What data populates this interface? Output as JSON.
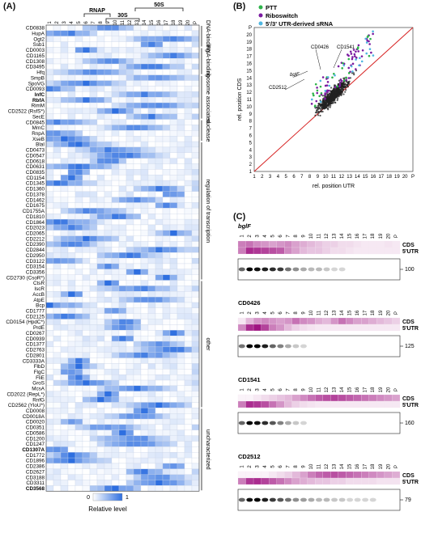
{
  "panelA": {
    "label": "(A)",
    "columns": [
      "1",
      "2",
      "3",
      "4",
      "5",
      "6",
      "7",
      "8",
      "9",
      "10",
      "11",
      "12",
      "13",
      "14",
      "15",
      "16",
      "17",
      "18",
      "19",
      "20",
      "P"
    ],
    "brackets": [
      {
        "label": "RNAP",
        "from": 6,
        "to": 9
      },
      {
        "label": "30S",
        "from": 9,
        "to": 13
      },
      {
        "label": "50S",
        "from": 13,
        "to": 19
      }
    ],
    "rows": [
      {
        "name": "CD0838",
        "bold": false
      },
      {
        "name": "HupA",
        "bold": false
      },
      {
        "name": "Ogt2",
        "bold": false
      },
      {
        "name": "Ssb1",
        "bold": false
      },
      {
        "name": "CD0003",
        "bold": false
      },
      {
        "name": "CD1165",
        "bold": false
      },
      {
        "name": "CD1308",
        "bold": false
      },
      {
        "name": "CD3495",
        "bold": false
      },
      {
        "name": "Hfq",
        "bold": false
      },
      {
        "name": "SmpB",
        "bold": false
      },
      {
        "name": "SpoVG",
        "bold": false
      },
      {
        "name": "CD0093",
        "bold": false
      },
      {
        "name": "InfC",
        "bold": true
      },
      {
        "name": "RbfA",
        "bold": true
      },
      {
        "name": "RimM",
        "bold": false
      },
      {
        "name": "CD2522 (RsfS*)",
        "bold": false
      },
      {
        "name": "SecE",
        "bold": false
      },
      {
        "name": "CD0845",
        "bold": false
      },
      {
        "name": "MrnC",
        "bold": false
      },
      {
        "name": "RnpA",
        "bold": false
      },
      {
        "name": "XseB",
        "bold": false
      },
      {
        "name": "BlaI",
        "bold": false
      },
      {
        "name": "CD0473",
        "bold": false
      },
      {
        "name": "CD0547",
        "bold": false
      },
      {
        "name": "CD0618",
        "bold": false
      },
      {
        "name": "CD0631",
        "bold": false
      },
      {
        "name": "CD0835",
        "bold": false
      },
      {
        "name": "CD1154",
        "bold": false
      },
      {
        "name": "CD1345",
        "bold": false
      },
      {
        "name": "CD1360",
        "bold": false
      },
      {
        "name": "CD1378",
        "bold": false
      },
      {
        "name": "CD1462",
        "bold": false
      },
      {
        "name": "CD1675",
        "bold": false
      },
      {
        "name": "CD1755A",
        "bold": false
      },
      {
        "name": "CD1810",
        "bold": false
      },
      {
        "name": "CD1864",
        "bold": false
      },
      {
        "name": "CD2023",
        "bold": false
      },
      {
        "name": "CD2065",
        "bold": false
      },
      {
        "name": "CD2212",
        "bold": false
      },
      {
        "name": "CD2390",
        "bold": false
      },
      {
        "name": "CD2844",
        "bold": false
      },
      {
        "name": "CD2950",
        "bold": false
      },
      {
        "name": "CD3122",
        "bold": false
      },
      {
        "name": "CD3154",
        "bold": false
      },
      {
        "name": "CD3356",
        "bold": false
      },
      {
        "name": "CD2730 (CsoR*)",
        "bold": false
      },
      {
        "name": "CtsR",
        "bold": false
      },
      {
        "name": "IscR",
        "bold": false
      },
      {
        "name": "AccB",
        "bold": false
      },
      {
        "name": "AtpE",
        "bold": false
      },
      {
        "name": "Bcp",
        "bold": false
      },
      {
        "name": "CD1777",
        "bold": false
      },
      {
        "name": "CD2125",
        "bold": false
      },
      {
        "name": "CD0154 (HpdC*)",
        "bold": false
      },
      {
        "name": "PrdE",
        "bold": false
      },
      {
        "name": "CD0267",
        "bold": false
      },
      {
        "name": "CD0939",
        "bold": false
      },
      {
        "name": "CD1377",
        "bold": false
      },
      {
        "name": "CD2763",
        "bold": false
      },
      {
        "name": "CD2801",
        "bold": false
      },
      {
        "name": "CD3333A",
        "bold": false
      },
      {
        "name": "FlbD",
        "bold": false
      },
      {
        "name": "FlgC",
        "bold": false
      },
      {
        "name": "FliE",
        "bold": false
      },
      {
        "name": "GroS",
        "bold": false
      },
      {
        "name": "McsA",
        "bold": false
      },
      {
        "name": "CD2022 (RepL*)",
        "bold": false
      },
      {
        "name": "RnfG",
        "bold": false
      },
      {
        "name": "CD2562 (YloU*)",
        "bold": false
      },
      {
        "name": "CD0008",
        "bold": false
      },
      {
        "name": "CD0018A",
        "bold": false
      },
      {
        "name": "CD0020",
        "bold": false
      },
      {
        "name": "CD0351",
        "bold": false
      },
      {
        "name": "CD0586",
        "bold": false
      },
      {
        "name": "CD1200",
        "bold": false
      },
      {
        "name": "CD1247",
        "bold": false
      },
      {
        "name": "CD1307A",
        "bold": true
      },
      {
        "name": "CD1772",
        "bold": false
      },
      {
        "name": "CD1896",
        "bold": false
      },
      {
        "name": "CD2386",
        "bold": false
      },
      {
        "name": "CD2627",
        "bold": false
      },
      {
        "name": "CD3188",
        "bold": false
      },
      {
        "name": "CD3311",
        "bold": false
      },
      {
        "name": "CD3568",
        "bold": true
      }
    ],
    "categories": [
      {
        "label": "DNA-binding",
        "from": 0,
        "to": 4
      },
      {
        "label": "RNA-binding",
        "from": 4,
        "to": 9
      },
      {
        "label": "ribosome associated",
        "from": 9,
        "to": 17
      },
      {
        "label": "nuclease",
        "from": 17,
        "to": 21
      },
      {
        "label": "regulation of transcription",
        "from": 21,
        "to": 46
      },
      {
        "label": "other",
        "from": 46,
        "to": 69
      },
      {
        "label": "uncharacterized",
        "from": 69,
        "to": 84
      }
    ],
    "legend": {
      "min": "0",
      "max": "1",
      "title": "Relative level"
    },
    "colors": {
      "high": "#2e6fe0",
      "low": "#ffffff"
    }
  },
  "panelB": {
    "label": "(B)",
    "legend": [
      {
        "label": "PTT",
        "color": "#2db34a"
      },
      {
        "label": "Riboswitch",
        "color": "#7a1aa0"
      },
      {
        "label": "5'/3' UTR-derived sRNA",
        "color": "#4fb6e0"
      }
    ],
    "ticks": [
      "1",
      "2",
      "3",
      "4",
      "5",
      "6",
      "7",
      "8",
      "9",
      "10",
      "11",
      "12",
      "13",
      "14",
      "15",
      "16",
      "17",
      "18",
      "19",
      "20",
      "P"
    ],
    "xlabel": "rel. position UTR",
    "ylabel": "rel. position CDS",
    "annotations": [
      "bglF",
      "CD0426",
      "CD1541",
      "CD2512"
    ]
  },
  "panelC": {
    "label": "(C)",
    "lanes": [
      "1",
      "2",
      "3",
      "4",
      "5",
      "6",
      "7",
      "8",
      "9",
      "10",
      "11",
      "12",
      "13",
      "14",
      "15",
      "16",
      "17",
      "18",
      "19",
      "20",
      "P"
    ],
    "blocks": [
      {
        "title": "bglF",
        "italic": true,
        "size": "100",
        "cds": [
          0.55,
          0.6,
          0.5,
          0.45,
          0.4,
          0.45,
          0.5,
          0.4,
          0.35,
          0.3,
          0.25,
          0.2,
          0.2,
          0.15,
          0.15,
          0.12,
          0.1,
          0.1,
          0.1,
          0.12,
          0.1
        ],
        "utr": [
          0.55,
          0.9,
          0.85,
          0.8,
          0.75,
          0.7,
          0.5,
          0.4,
          0.3,
          0.25,
          0.25,
          0.2,
          0.15,
          0.15,
          0.12,
          0.1,
          0.1,
          0.1,
          0.1,
          0.1,
          0.1
        ]
      },
      {
        "title": "CD0426",
        "italic": false,
        "size": "125",
        "cds": [
          0.1,
          0.3,
          0.45,
          0.5,
          0.45,
          0.4,
          0.45,
          0.6,
          0.5,
          0.45,
          0.35,
          0.3,
          0.45,
          0.6,
          0.5,
          0.4,
          0.4,
          0.35,
          0.3,
          0.25,
          0.2
        ],
        "utr": [
          0.5,
          0.9,
          1.0,
          0.8,
          0.55,
          0.45,
          0.3,
          0.2,
          0.15,
          0.12,
          0.1,
          0.1,
          0.1,
          0.1,
          0.1,
          0.1,
          0.1,
          0.1,
          0.1,
          0.1,
          0.1
        ]
      },
      {
        "title": "CD1541",
        "italic": false,
        "size": "160",
        "cds": [
          0.05,
          0.05,
          0.1,
          0.15,
          0.2,
          0.25,
          0.3,
          0.4,
          0.5,
          0.6,
          0.7,
          0.75,
          0.8,
          0.75,
          0.7,
          0.65,
          0.6,
          0.55,
          0.5,
          0.45,
          0.4
        ],
        "utr": [
          0.55,
          0.9,
          0.85,
          0.75,
          0.6,
          0.45,
          0.3,
          0.2,
          0.15,
          0.12,
          0.1,
          0.1,
          0.1,
          0.1,
          0.1,
          0.1,
          0.1,
          0.1,
          0.1,
          0.1,
          0.1
        ]
      },
      {
        "title": "CD2512",
        "italic": false,
        "size": "79",
        "cds": [
          0.05,
          0.05,
          0.05,
          0.05,
          0.1,
          0.15,
          0.2,
          0.3,
          0.4,
          0.55,
          0.65,
          0.7,
          0.75,
          0.7,
          0.65,
          0.6,
          0.55,
          0.5,
          0.45,
          0.4,
          0.35
        ],
        "utr": [
          0.55,
          0.85,
          0.9,
          0.8,
          0.7,
          0.6,
          0.5,
          0.4,
          0.35,
          0.3,
          0.25,
          0.25,
          0.2,
          0.2,
          0.15,
          0.15,
          0.15,
          0.15,
          0.12,
          0.12,
          0.12
        ]
      }
    ],
    "row_labels": {
      "cds": "CDS",
      "utr": "5'UTR"
    }
  }
}
